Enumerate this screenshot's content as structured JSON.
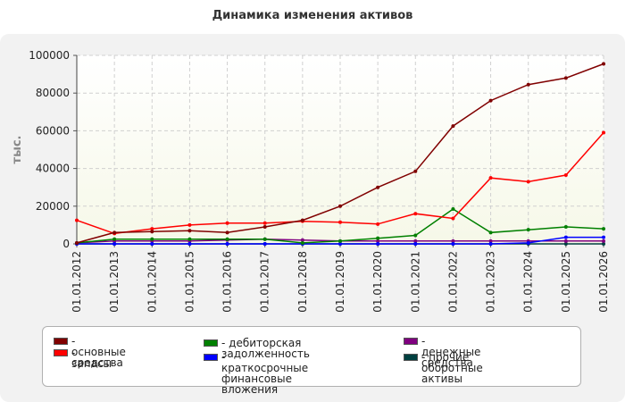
{
  "title": "Динамика изменения активов",
  "chart_data": {
    "type": "line",
    "title": "Динамика изменения активов",
    "ylabel": "тыс.",
    "xlabel": "",
    "ylim": [
      0,
      100000
    ],
    "yticks": [
      "0",
      "20000",
      "40000",
      "60000",
      "80000",
      "100000"
    ],
    "categories": [
      "01.01.2012",
      "01.01.2013",
      "01.01.2014",
      "01.01.2015",
      "01.01.2016",
      "01.01.2017",
      "01.01.2018",
      "01.01.2019",
      "01.01.2020",
      "01.01.2021",
      "01.01.2022",
      "01.01.2023",
      "01.01.2024",
      "01.01.2025",
      "01.01.2026"
    ],
    "grid": true,
    "legend_position": "bottom",
    "series": [
      {
        "name": "- основные средства",
        "color": "#800000",
        "values": [
          500,
          6000,
          6500,
          7000,
          6000,
          9000,
          12500,
          20000,
          30000,
          38500,
          62500,
          76000,
          84500,
          88000,
          95500
        ]
      },
      {
        "name": "- запасы",
        "color": "#ff0000",
        "values": [
          12500,
          5500,
          8000,
          10000,
          11000,
          11000,
          12000,
          11500,
          10500,
          16000,
          13500,
          35000,
          33000,
          36500,
          59000
        ]
      },
      {
        "name": "- дебиторская задолженность",
        "color": "#008000",
        "values": [
          500,
          2500,
          2500,
          2500,
          2500,
          2500,
          500,
          1500,
          3000,
          4500,
          18500,
          6000,
          7500,
          9000,
          8000
        ]
      },
      {
        "name": "- краткосрочные финансовые вложения",
        "color": "#0000ff",
        "values": [
          0,
          0,
          0,
          0,
          0,
          0,
          0,
          0,
          0,
          0,
          0,
          0,
          500,
          3500,
          3500
        ]
      },
      {
        "name": "- денежные средства",
        "color": "#800080",
        "values": [
          500,
          1500,
          1500,
          1500,
          2000,
          2500,
          2000,
          1500,
          1500,
          1500,
          1500,
          1500,
          1500,
          1500,
          1500
        ]
      },
      {
        "name": "- прочие оборотные активы",
        "color": "#004040",
        "values": [
          0,
          0,
          0,
          0,
          0,
          0,
          0,
          0,
          0,
          0,
          0,
          0,
          0,
          0,
          0
        ]
      }
    ]
  },
  "legend": [
    {
      "label": "- основные средства",
      "color": "#800000"
    },
    {
      "label": "- запасы",
      "color": "#ff0000"
    },
    {
      "label": "- дебиторская задолженность",
      "color": "#008000"
    },
    {
      "label": "- краткосрочные финансовые\nвложения",
      "color": "#0000ff"
    },
    {
      "label": "- денежные средства",
      "color": "#800080"
    },
    {
      "label": "- прочие оборотные активы",
      "color": "#004040"
    }
  ]
}
